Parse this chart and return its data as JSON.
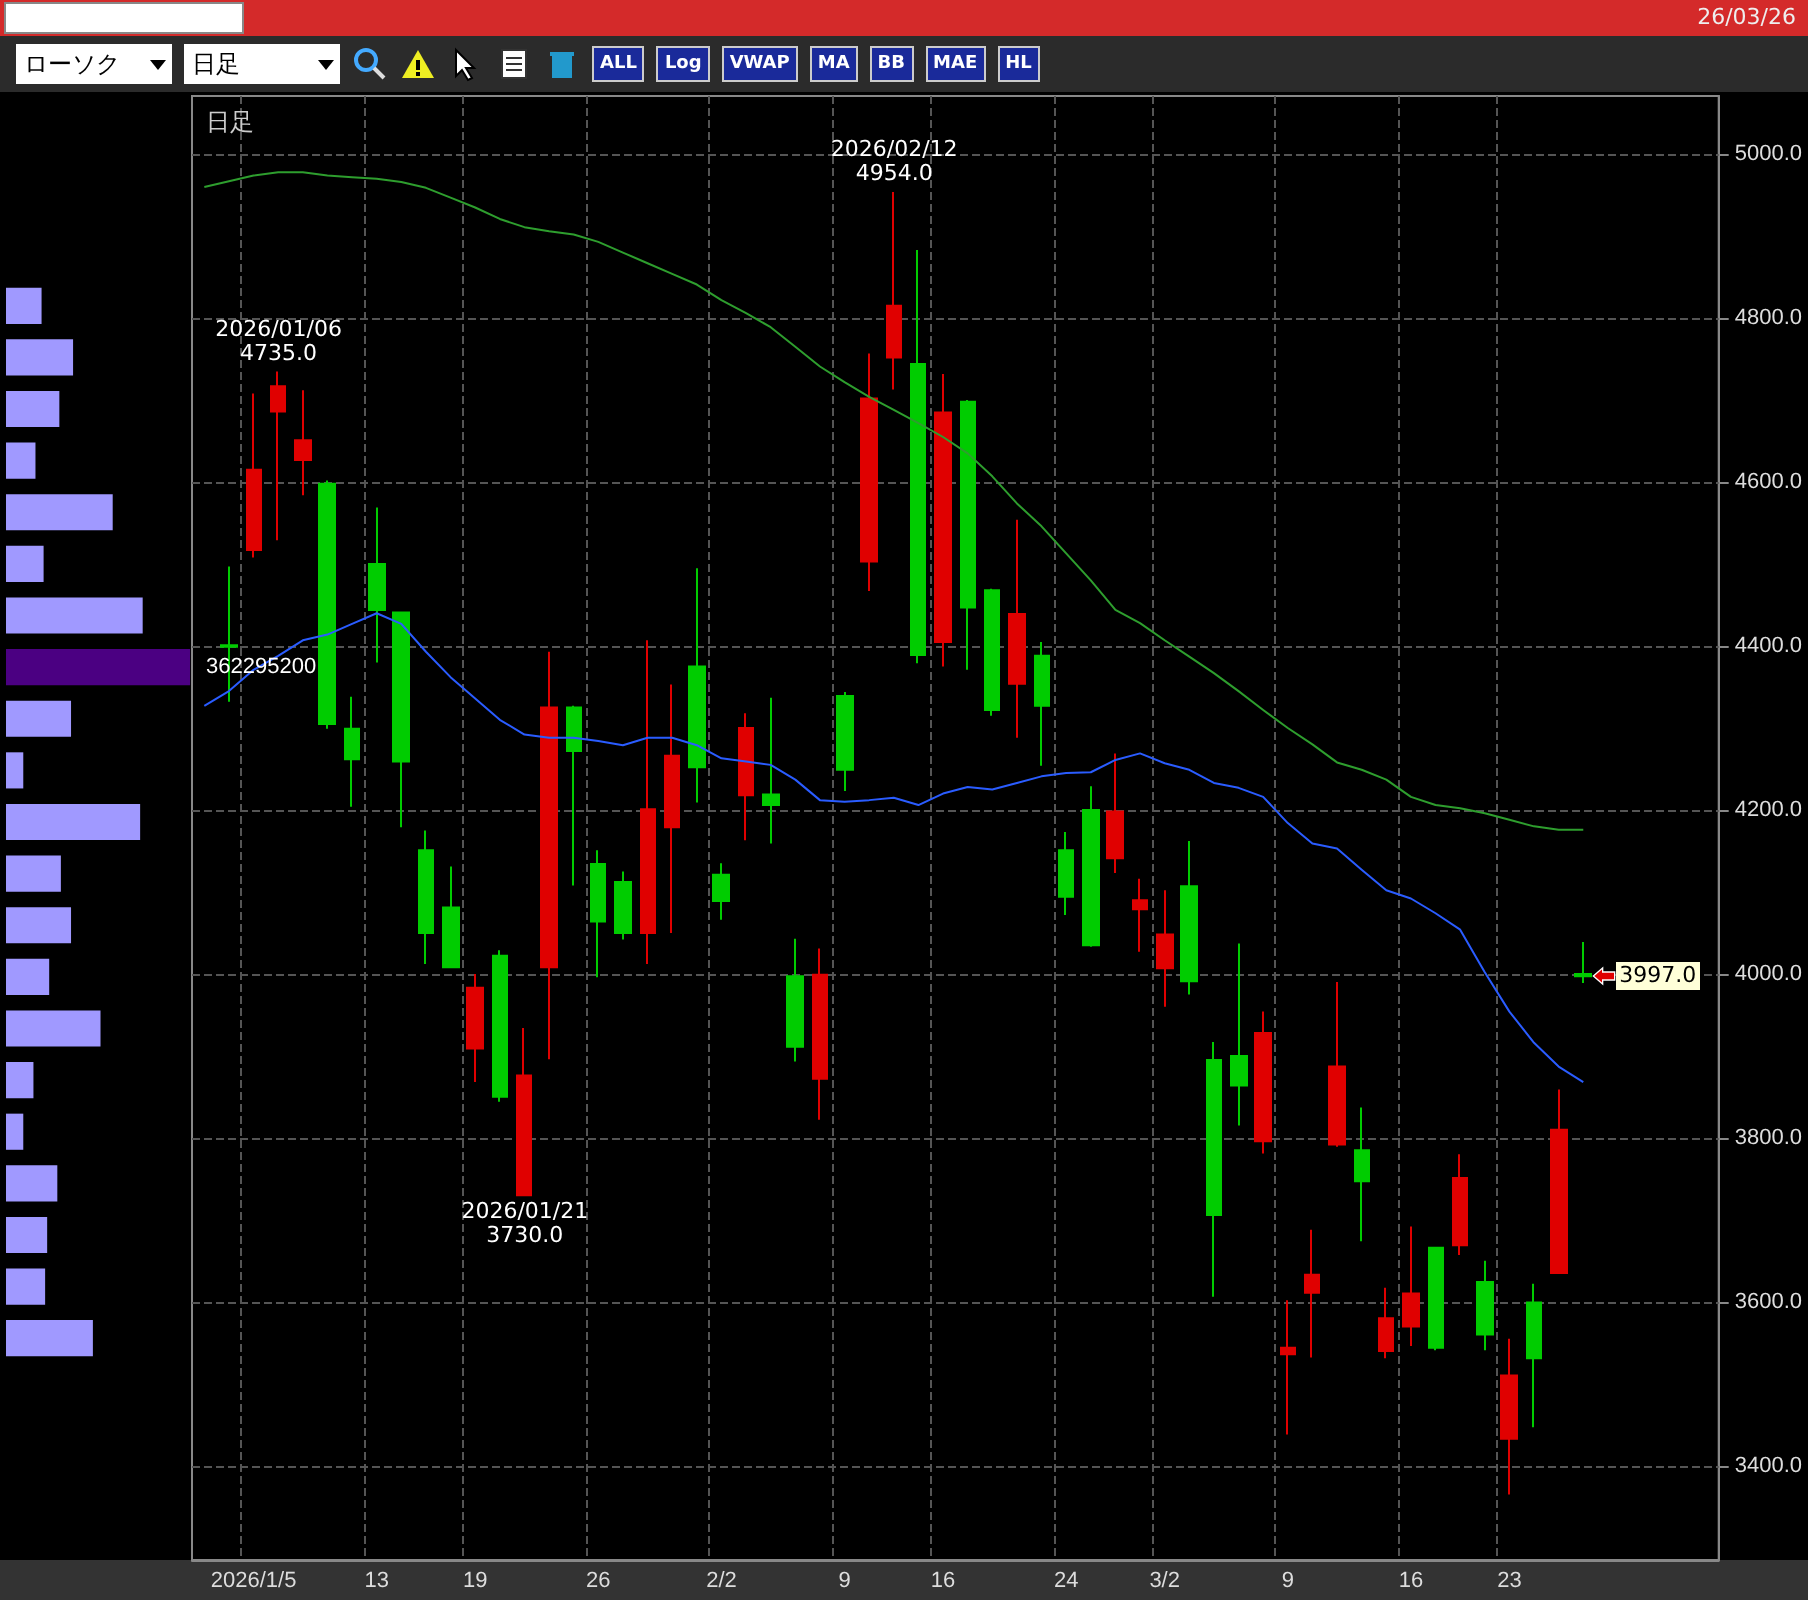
{
  "chart_data": [
    {
      "type": "candlestick",
      "title": "日足",
      "categories": [
        null,
        null,
        "2026/1/5",
        null,
        null,
        null,
        null,
        "13",
        null,
        null,
        null,
        "19",
        null,
        null,
        null,
        null,
        "26",
        null,
        null,
        null,
        null,
        "2/2",
        null,
        null,
        null,
        null,
        "9",
        null,
        null,
        null,
        "16",
        null,
        null,
        null,
        null,
        "24",
        null,
        null,
        null,
        "3/2",
        null,
        null,
        null,
        null,
        "9",
        null,
        null,
        null,
        null,
        "16",
        null,
        null,
        null,
        "23",
        null,
        null,
        null,
        null,
        null,
        null,
        null,
        null
      ],
      "ohlc": [
        null,
        [
          4401,
          4497,
          4332,
          4399
        ],
        [
          4517,
          4708,
          4508,
          4615
        ],
        [
          4686,
          4735,
          4529,
          4717
        ],
        [
          4627,
          4712,
          4584,
          4651
        ],
        [
          4598,
          4602,
          4299,
          4305
        ],
        [
          4299,
          4338,
          4204,
          4262
        ],
        [
          4500,
          4569,
          4380,
          4444
        ],
        [
          4441,
          4441,
          4179,
          4259
        ],
        [
          4151,
          4175,
          4012,
          4050
        ],
        [
          4081,
          4131,
          4008,
          4008
        ],
        [
          3909,
          4000,
          3868,
          3983
        ],
        [
          4022,
          4029,
          3844,
          3850
        ],
        [
          3730,
          3934,
          3730,
          3876
        ],
        [
          4008,
          4393,
          3896,
          4325
        ],
        [
          4325,
          4327,
          4108,
          4272
        ],
        [
          4134,
          4151,
          3996,
          4064
        ],
        [
          4112,
          4125,
          4042,
          4050
        ],
        [
          4050,
          4407,
          4012,
          4201
        ],
        [
          4179,
          4353,
          4050,
          4266
        ],
        [
          4375,
          4495,
          4209,
          4252
        ],
        [
          4121,
          4135,
          4066,
          4089
        ],
        [
          4218,
          4318,
          4163,
          4300
        ],
        [
          4219,
          4337,
          4159,
          4206
        ],
        [
          3997,
          4043,
          3893,
          3911
        ],
        [
          3872,
          4031,
          3822,
          3999
        ],
        [
          4339,
          4344,
          4223,
          4249
        ],
        [
          4503,
          4757,
          4467,
          4702
        ],
        [
          4752,
          4954,
          4713,
          4815
        ],
        [
          4744,
          4883,
          4379,
          4389
        ],
        [
          4405,
          4732,
          4375,
          4685
        ],
        [
          4698,
          4700,
          4371,
          4447
        ],
        [
          4468,
          4470,
          4315,
          4322
        ],
        [
          4354,
          4554,
          4288,
          4439
        ],
        [
          4388,
          4405,
          4254,
          4327
        ],
        [
          4151,
          4173,
          4072,
          4094
        ],
        [
          4200,
          4229,
          4033,
          4035
        ],
        [
          4141,
          4269,
          4123,
          4198
        ],
        [
          4079,
          4116,
          4027,
          4090
        ],
        [
          4007,
          4102,
          3960,
          4048
        ],
        [
          4107,
          4162,
          3975,
          3991
        ],
        [
          3895,
          3917,
          3606,
          3706
        ],
        [
          3900,
          4037,
          3815,
          3864
        ],
        [
          3796,
          3954,
          3781,
          3928
        ],
        [
          3536,
          3602,
          3438,
          3544
        ],
        [
          3611,
          3688,
          3532,
          3633
        ],
        [
          3792,
          3990,
          3789,
          3887
        ],
        [
          3785,
          3837,
          3674,
          3747
        ],
        [
          3540,
          3617,
          3531,
          3580
        ],
        [
          3570,
          3692,
          3546,
          3610
        ],
        [
          3666,
          3666,
          3541,
          3544
        ],
        [
          3669,
          3780,
          3657,
          3751
        ],
        [
          3624,
          3650,
          3541,
          3560
        ],
        [
          3433,
          3555,
          3365,
          3510
        ],
        [
          3599,
          3622,
          3447,
          3531
        ],
        [
          3635,
          3859,
          3635,
          3810
        ],
        [
          4000,
          4039,
          3989,
          3997
        ],
        null,
        null,
        null,
        null,
        null
      ],
      "colors": [
        null,
        "#00cc00",
        "#e00000",
        "#e00000",
        "#e00000",
        "#00cc00",
        "#00cc00",
        "#00cc00",
        "#00cc00",
        "#00cc00",
        "#00cc00",
        "#e00000",
        "#00cc00",
        "#e00000",
        "#e00000",
        "#00cc00",
        "#00cc00",
        "#00cc00",
        "#e00000",
        "#e00000",
        "#00cc00",
        "#00cc00",
        "#e00000",
        "#00cc00",
        "#00cc00",
        "#e00000",
        "#00cc00",
        "#e00000",
        "#e00000",
        "#00cc00",
        "#e00000",
        "#00cc00",
        "#00cc00",
        "#e00000",
        "#00cc00",
        "#00cc00",
        "#00cc00",
        "#e00000",
        "#e00000",
        "#e00000",
        "#00cc00",
        "#00cc00",
        "#00cc00",
        "#e00000",
        "#e00000",
        "#e00000",
        "#e00000",
        "#00cc00",
        "#e00000",
        "#e00000",
        "#00cc00",
        "#e00000",
        "#00cc00",
        "#e00000",
        "#00cc00",
        "#e00000",
        "#00cc00",
        null,
        null,
        null,
        null,
        null
      ],
      "series": [
        {
          "type": "line",
          "color": "#2a5cff",
          "values": [
            4327,
            4345,
            4371,
            4388,
            4407,
            4414,
            4427,
            4440,
            4427,
            4393,
            4362,
            4336,
            4310,
            4292,
            4288,
            4288,
            4284,
            4279,
            4288,
            4288,
            4279,
            4263,
            4259,
            4255,
            4237,
            4212,
            4210,
            4212,
            4215,
            4206,
            4220,
            4228,
            4225,
            4233,
            4241,
            4245,
            4246,
            4261,
            4269,
            4257,
            4249,
            4233,
            4227,
            4216,
            4184,
            4159,
            4153,
            4127,
            4102,
            4092,
            4074,
            4054,
            4002,
            3954,
            3916,
            3887,
            3868,
            null,
            null,
            null,
            null,
            null
          ]
        },
        {
          "type": "line",
          "color": "#2e9e2e",
          "values": [
            4960,
            4967,
            4974,
            4978,
            4978,
            4974,
            4972,
            4970,
            4966,
            4959,
            4947,
            4935,
            4921,
            4911,
            4906,
            4902,
            4893,
            4880,
            4867,
            4854,
            4841,
            4822,
            4806,
            4789,
            4765,
            4741,
            4722,
            4704,
            4688,
            4672,
            4655,
            4635,
            4607,
            4574,
            4546,
            4513,
            4480,
            4444,
            4428,
            4407,
            4387,
            4367,
            4345,
            4322,
            4300,
            4280,
            4258,
            4249,
            4237,
            4216,
            4206,
            4202,
            4196,
            4188,
            4180,
            4176,
            4176,
            null,
            null,
            null,
            null,
            null
          ]
        }
      ],
      "marker": "none",
      "ylim": [
        3285,
        5071
      ],
      "yticks": [
        {
          "value": 3400,
          "label": "3400.0"
        },
        {
          "value": 3600,
          "label": "3600.0"
        },
        {
          "value": 3800,
          "label": "3800.0"
        },
        {
          "value": 4000,
          "label": "4000.0"
        },
        {
          "value": 4200,
          "label": "4200.0"
        },
        {
          "value": 4400,
          "label": "4400.0"
        },
        {
          "value": 4600,
          "label": "4600.0"
        },
        {
          "value": 4800,
          "label": "4800.0"
        },
        {
          "value": 5000,
          "label": "5000.0"
        }
      ],
      "grid": true,
      "annotations": [
        "26/03/26",
        "ローソク",
        "日足",
        "ALL",
        "Log",
        "VWAP",
        "MA",
        "BB",
        "MAE",
        "HL",
        {
          "text": "2026/01/06\n4735.0",
          "y": 4735
        },
        {
          "text": "2026/02/12\n4954.0",
          "y": 4954
        },
        {
          "text": "2026/01/21\n3730.0",
          "y": 3730
        },
        {
          "text": "3997.0",
          "y": 3997
        }
      ]
    },
    {
      "type": "bar",
      "orientation": "horizontal",
      "tick_labels": false,
      "categories": [
        null,
        null,
        null,
        null,
        null,
        null,
        null,
        null,
        null,
        null,
        null,
        null,
        null,
        null,
        null,
        null,
        null,
        null,
        null,
        null,
        null
      ],
      "values": [
        70000000,
        132000000,
        105000000,
        58000000,
        210000000,
        74000000,
        269000000,
        362295200,
        128000000,
        34000000,
        264000000,
        108000000,
        128000000,
        85000000,
        186000000,
        54000000,
        34000000,
        101000000,
        81000000,
        77000000,
        171000000
      ],
      "colors": [
        "#a099ff",
        "#a099ff",
        "#a099ff",
        "#a099ff",
        "#a099ff",
        "#a099ff",
        "#a099ff",
        "#4b0082",
        "#a099ff",
        "#a099ff",
        "#a099ff",
        "#a099ff",
        "#a099ff",
        "#a099ff",
        "#a099ff",
        "#a099ff",
        "#a099ff",
        "#a099ff",
        "#a099ff",
        "#a099ff",
        "#a099ff"
      ],
      "xlim": [
        0,
        370000000
      ],
      "value_labels": [
        null,
        null,
        null,
        null,
        null,
        null,
        null,
        "362295200",
        null,
        null,
        null,
        null,
        null,
        null,
        null,
        null,
        null,
        null,
        null,
        null,
        null
      ]
    }
  ]
}
